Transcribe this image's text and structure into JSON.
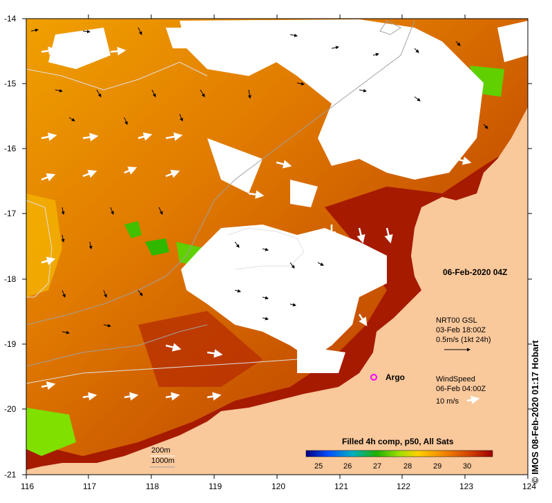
{
  "map": {
    "date_label": "06-Feb-2020 04Z",
    "x_ticks": [
      "116",
      "117",
      "118",
      "119",
      "120",
      "121",
      "122",
      "123",
      "124"
    ],
    "y_ticks": [
      "-14",
      "-15",
      "-16",
      "-17",
      "-18",
      "-19",
      "-20",
      "-21"
    ],
    "current_legend": {
      "line1": "NRT00 GSL",
      "line2": "03-Feb 18:00Z",
      "line3": "0.5m/s (1kt 24h)"
    },
    "wind_legend": {
      "line1": "WindSpeed",
      "line2": "06-Feb 04:00Z",
      "line3": "10 m/s"
    },
    "argo_label": "Argo",
    "contour_legend": {
      "line1": "200m",
      "line2": "1000m"
    },
    "colorbar": {
      "title": "Filled 4h comp, p50, All Sats",
      "ticks": [
        "25",
        "26",
        "27",
        "28",
        "29",
        "30"
      ],
      "min": 24.5,
      "max": 31
    },
    "credit": "© IMOS 08-Feb-2020 01:17 Hobart",
    "colors": {
      "land": "#f9c89b",
      "warm": "#a61a00",
      "mid": "#d46a00",
      "cool": "#f2a200",
      "cloud": "#ffffff"
    }
  }
}
